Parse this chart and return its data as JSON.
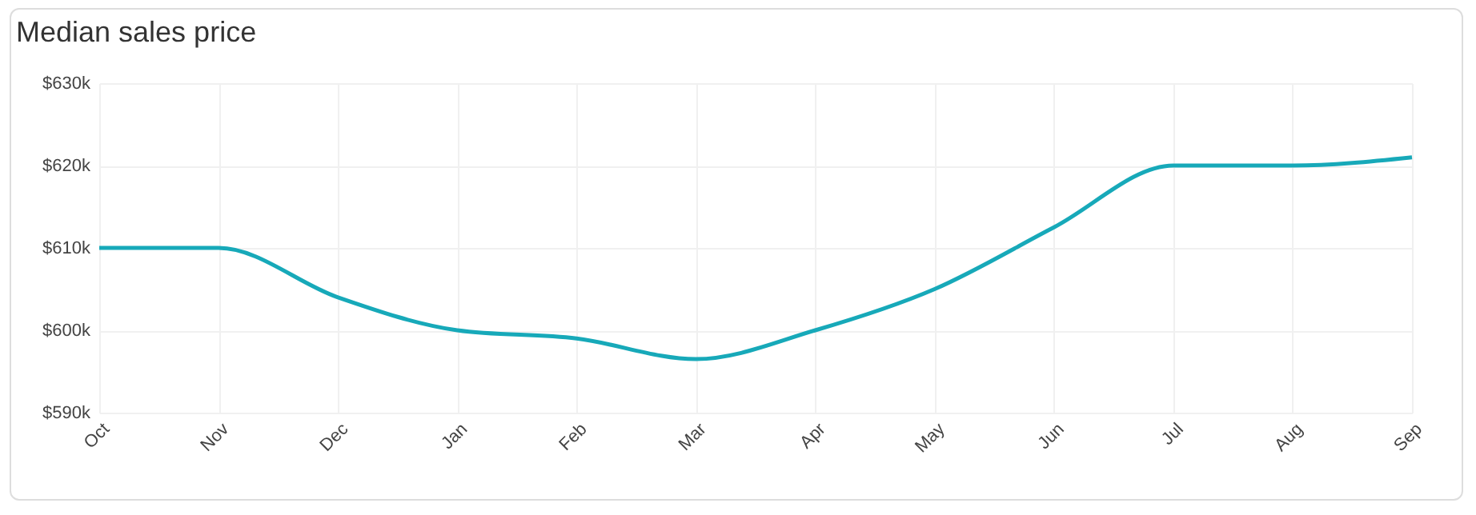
{
  "chart_data": {
    "type": "line",
    "title": "Median sales price",
    "categories": [
      "Oct",
      "Nov",
      "Dec",
      "Jan",
      "Feb",
      "Mar",
      "Apr",
      "May",
      "Jun",
      "Jul",
      "Aug",
      "Sep"
    ],
    "series": [
      {
        "color": "#17a9b9",
        "values": [
          610000,
          610000,
          604000,
          600000,
          599000,
          596500,
          600000,
          605000,
          612500,
          620000,
          620000,
          621000
        ]
      }
    ],
    "ylim": [
      590000,
      630000
    ],
    "yticks": [
      {
        "value": 590000,
        "label": "$590k"
      },
      {
        "value": 600000,
        "label": "$600k"
      },
      {
        "value": 610000,
        "label": "$610k"
      },
      {
        "value": 620000,
        "label": "$620k"
      },
      {
        "value": 630000,
        "label": "$630k"
      }
    ],
    "grid": true,
    "marker": "none",
    "line_style": "solid"
  }
}
